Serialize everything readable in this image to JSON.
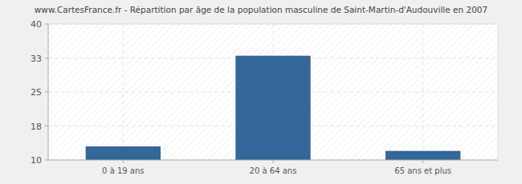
{
  "chart_data": {
    "type": "bar",
    "title": "www.CartesFrance.fr - Répartition par âge de la population masculine de Saint-Martin-d'Audouville en 2007",
    "categories": [
      "0 à 19 ans",
      "20 à 64 ans",
      "65 ans et plus"
    ],
    "values": [
      13,
      33,
      12
    ],
    "color": "#336699",
    "ylim": [
      10,
      40
    ],
    "yticks": [
      10,
      {
        "value": 17.5,
        "label": "18"
      },
      25,
      {
        "value": 32.5,
        "label": "33"
      },
      40
    ],
    "grid": true
  }
}
